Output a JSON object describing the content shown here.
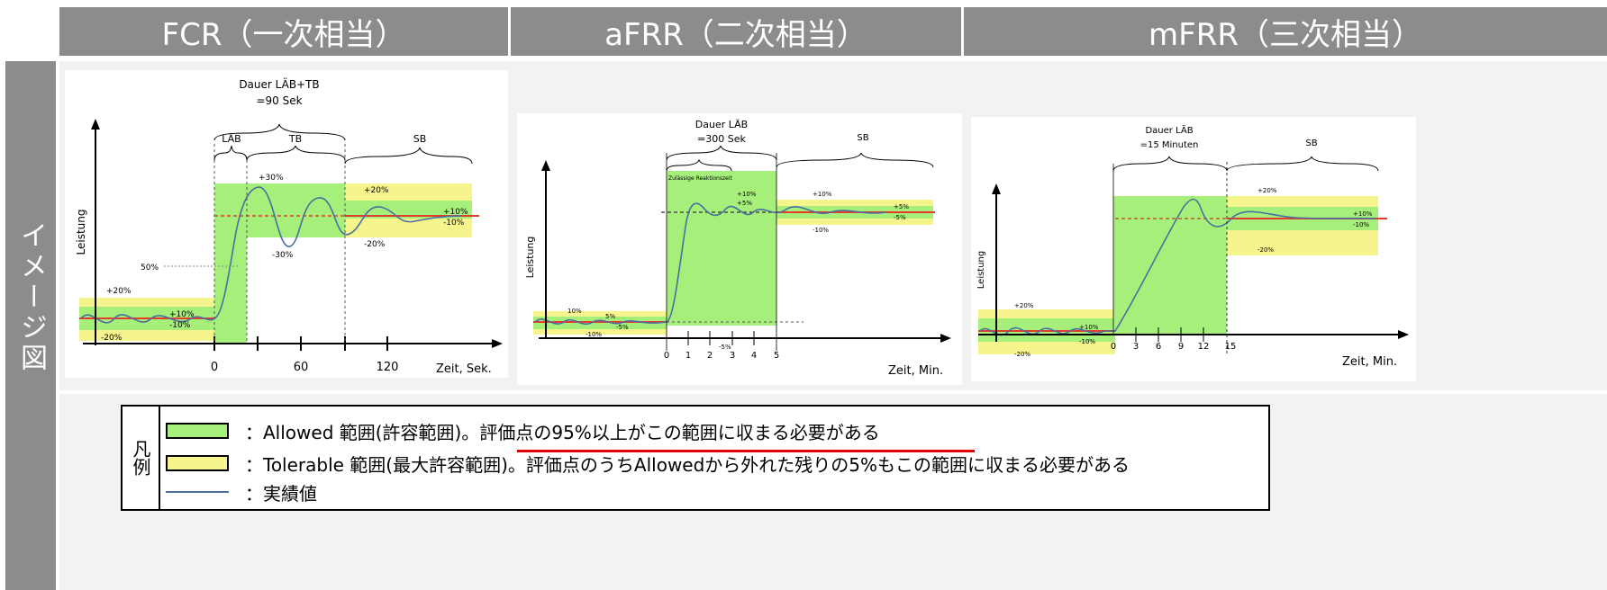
{
  "headers": [
    "FCR（一次相当）",
    "aFRR（二次相当）",
    "mFRR（三次相当）"
  ],
  "side_label": "イメージ図",
  "colors": {
    "header_bg": "#8c8c8c",
    "allowed": "#a6ef7a",
    "tolerable": "#f6f48c",
    "actual": "#4a6fa0",
    "setpoint": "#e43b2b",
    "underline": "#e00000"
  },
  "fcr": {
    "duration": "Dauer LÄB+TB",
    "duration2": "=90 Sek",
    "lab": "LÄB",
    "tb": "TB",
    "sb": "SB",
    "ylabel": "Leistung",
    "xlabel": "Zeit, Sek.",
    "ticks": [
      "0",
      "60",
      "120"
    ],
    "annots": {
      "p30": "+30%",
      "m30": "-30%",
      "p20a": "+20%",
      "m20a": "-20%",
      "p10r": "+10%",
      "m10r": "-10%",
      "p20l": "+20%",
      "p10l": "+10%",
      "m10l": "-10%",
      "m20l": "-20%",
      "fifty": "50%"
    }
  },
  "afrr": {
    "duration": "Dauer LÄB",
    "duration2": "=300 Sek",
    "sb": "SB",
    "reaction": "Zulässige Reaktionszeit",
    "ylabel": "Leistung",
    "xlabel": "Zeit, Min.",
    "ticks": [
      "0",
      "1",
      "2",
      "3",
      "4",
      "5"
    ],
    "annots": {
      "p10a": "+10%",
      "p5a": "+5%",
      "p10b": "+10%",
      "m10b": "-10%",
      "p5r": "+5%",
      "m5r": "-5%",
      "l10": "10%",
      "l5": "5%",
      "lm10": "-10%",
      "lm5": "-5%",
      "m5": "-5%"
    }
  },
  "mfrr": {
    "duration": "Dauer LÄB",
    "duration2": "=15 Minuten",
    "sb": "SB",
    "ylabel": "Leistung",
    "xlabel": "Zeit, Min.",
    "ticks": [
      "0",
      "3",
      "6",
      "9",
      "12",
      "15"
    ],
    "annots": {
      "p20": "+20%",
      "m20": "-20%",
      "p10r": "+10%",
      "m10r": "-10%",
      "p20l": "+20%",
      "p10l": "+10%",
      "m10l": "-10%",
      "m20l": "-20%"
    }
  },
  "legend": {
    "title": "凡例",
    "allowed": "：Allowed 範囲(許容範囲)。評価点の95%以上がこの範囲に収まる必要がある",
    "tolerable": "：Tolerable 範囲(最大許容範囲)。評価点のうちAllowedから外れた残りの5%もこの範囲に収まる必要がある",
    "actual": "：実績値"
  }
}
